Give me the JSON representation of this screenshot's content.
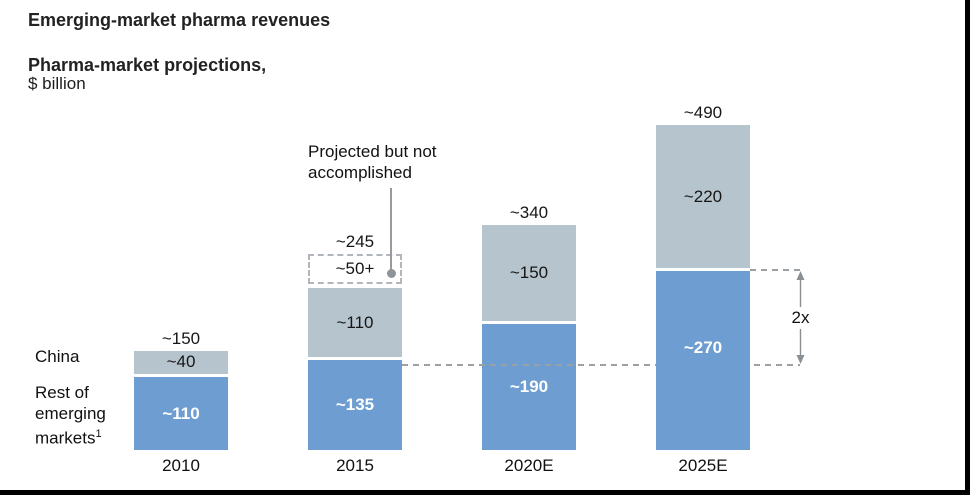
{
  "header": {
    "kicker": "Emerging-market pharma revenues",
    "title": "Pharma-market projections,",
    "unit": "$ billion"
  },
  "callout": {
    "line1": "Projected but not",
    "line2": "accomplished"
  },
  "comparison": {
    "label": "2x"
  },
  "legend": {
    "china": "China",
    "rest_line1": "Rest of",
    "rest_line2": "emerging",
    "rest_line3": "markets",
    "footnote_mark": "1"
  },
  "colors": {
    "china_segment": "#b6c4ce",
    "rest_segment": "#6d9dd1",
    "dashed_gray": "#9aa0a4",
    "frame_black": "#000000"
  },
  "chart_data": {
    "type": "bar",
    "stacked": true,
    "title": "Pharma-market projections",
    "unit": "$ billion",
    "categories": [
      "2010",
      "2015",
      "2020E",
      "2025E"
    ],
    "series_names": [
      "Rest of emerging markets",
      "China",
      "Projected but not accomplished"
    ],
    "legend_position": "left-of-2010-bar",
    "grid": false,
    "bars": [
      {
        "category": "2010",
        "total_label": "~150",
        "segments": [
          {
            "series": "rest",
            "value": 110,
            "label": "~110"
          },
          {
            "series": "china",
            "value": 40,
            "label": "~40"
          }
        ]
      },
      {
        "category": "2015",
        "total_label": "~245",
        "segments": [
          {
            "series": "rest",
            "value": 135,
            "label": "~135"
          },
          {
            "series": "china",
            "value": 110,
            "label": "~110"
          },
          {
            "series": "projected",
            "value": 50,
            "label": "~50+"
          }
        ]
      },
      {
        "category": "2020E",
        "total_label": "~340",
        "segments": [
          {
            "series": "rest",
            "value": 190,
            "label": "~190"
          },
          {
            "series": "china",
            "value": 150,
            "label": "~150"
          }
        ]
      },
      {
        "category": "2025E",
        "total_label": "~490",
        "segments": [
          {
            "series": "rest",
            "value": 270,
            "label": "~270"
          },
          {
            "series": "china",
            "value": 220,
            "label": "~220"
          }
        ]
      }
    ]
  }
}
